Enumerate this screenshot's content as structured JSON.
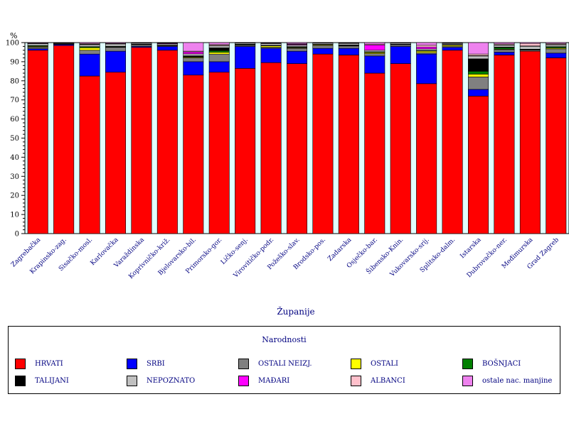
{
  "chart_data": {
    "type": "bar",
    "stacked": true,
    "ylabel_unit": "%",
    "xlabel": "Županije",
    "ylim": [
      0,
      100
    ],
    "yticks": [
      0,
      10,
      20,
      30,
      40,
      50,
      60,
      70,
      80,
      90,
      100
    ],
    "legend_title": "Narodnosti",
    "legend_position": "bottom",
    "categories": [
      "Zagrebačka",
      "Krapinsko-zag.",
      "Sisačko-mosl.",
      "Karlovačka",
      "Varaždinska",
      "Koprivničko-križ.",
      "Bjelovarsko-bil.",
      "Primorsko-gor.",
      "Ličko-senj.",
      "Virovitičko-podr.",
      "Požeško-slav.",
      "Brodsko-pos.",
      "Zadarska",
      "Osječko-bar.",
      "Šibensko-Knin.",
      "Vukovarsko-srij.",
      "Splitsko-dalm.",
      "Istarska",
      "Dubrovačko-ner.",
      "Međimurska",
      "Grad Zagreb"
    ],
    "series": [
      {
        "name": "HRVATI",
        "color": "#ff0000",
        "values": [
          96,
          98.5,
          82.5,
          84.5,
          97.5,
          96,
          83,
          84.5,
          86.5,
          89.5,
          89,
          94,
          93.5,
          84,
          89,
          78.5,
          96,
          72,
          93.5,
          95.5,
          92
        ]
      },
      {
        "name": "SRBI",
        "color": "#0000ff",
        "values": [
          0.8,
          0.5,
          11.5,
          11,
          0.5,
          2,
          7,
          5.5,
          11.5,
          7.5,
          6.5,
          3,
          3.5,
          9,
          9,
          15.5,
          1.5,
          3.5,
          1.5,
          0,
          2.5
        ]
      },
      {
        "name": "OSTALI NEIZJ.",
        "color": "#808080",
        "values": [
          0.8,
          0.2,
          2,
          2,
          0.8,
          0.5,
          2,
          4,
          0.6,
          0.6,
          1.5,
          1.5,
          1.2,
          1.2,
          0.8,
          0.7,
          0.6,
          6.5,
          1.3,
          0.6,
          2.2
        ]
      },
      {
        "name": "OSTALI",
        "color": "#ffff00",
        "values": [
          0.4,
          0.1,
          1.3,
          0.2,
          0.2,
          0.1,
          0.4,
          0.9,
          0.2,
          0.7,
          0.3,
          0.4,
          0.2,
          0.6,
          0.2,
          0.8,
          0.6,
          1.5,
          0.3,
          0.1,
          0.5
        ]
      },
      {
        "name": "BOŠNJACI",
        "color": "#008000",
        "values": [
          0.4,
          0.1,
          0.5,
          0.3,
          0.2,
          0.1,
          0.3,
          0.9,
          0.3,
          0.2,
          0.3,
          0.2,
          0.2,
          0.3,
          0.1,
          0.3,
          0.2,
          1.5,
          0.8,
          0.3,
          0.6
        ]
      },
      {
        "name": "TALIJANI",
        "color": "#000000",
        "values": [
          0.1,
          0.05,
          0.1,
          0.1,
          0.05,
          0.1,
          0.4,
          1.5,
          0.1,
          0.1,
          0.3,
          0.1,
          0.2,
          0.1,
          0.1,
          0.1,
          0.1,
          6.5,
          0.3,
          0.05,
          0.1
        ]
      },
      {
        "name": "NEPOZNATO",
        "color": "#c0c0c0",
        "values": [
          1,
          0.4,
          1,
          1.2,
          0.5,
          0.6,
          1,
          1,
          0.6,
          0.9,
          0.8,
          0.6,
          0.8,
          0.8,
          0.6,
          0.8,
          0.6,
          1.5,
          1,
          1.5,
          0.9
        ]
      },
      {
        "name": "MAĐARI",
        "color": "#ff00ff",
        "values": [
          0.05,
          0.05,
          0.2,
          0.1,
          0.1,
          0.3,
          1,
          0.2,
          0.1,
          0.3,
          0.4,
          0.1,
          0.1,
          2.8,
          0.1,
          1,
          0.1,
          0.2,
          0.1,
          0.2,
          0.2
        ]
      },
      {
        "name": "ALBANCI",
        "color": "#ffc0cb",
        "values": [
          0.15,
          0.05,
          0.4,
          0.2,
          0.15,
          0.2,
          0.4,
          0.5,
          0.05,
          0.1,
          0.3,
          0.05,
          0.2,
          0.4,
          0.05,
          0.9,
          0.15,
          0.8,
          0.5,
          1.3,
          0.5
        ]
      },
      {
        "name": "ostale nac. manjine",
        "color": "#ee82ee",
        "values": [
          0.35,
          0.05,
          0.5,
          0.4,
          0,
          0.1,
          4.5,
          1,
          0.05,
          0.1,
          0.6,
          0.05,
          0.1,
          0.8,
          0.05,
          1.4,
          0.15,
          6,
          0.7,
          0.45,
          0.5
        ]
      }
    ]
  }
}
